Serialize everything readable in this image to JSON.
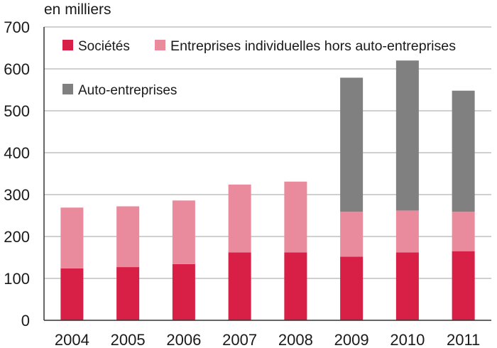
{
  "chart_data": {
    "type": "bar",
    "stacked": true,
    "unit_label": "en milliers",
    "categories": [
      "2004",
      "2005",
      "2006",
      "2007",
      "2008",
      "2009",
      "2010",
      "2011"
    ],
    "series": [
      {
        "name": "Sociétés",
        "color": "#d81f45",
        "values": [
          124,
          127,
          134,
          162,
          162,
          152,
          162,
          165
        ]
      },
      {
        "name": "Entreprises individuelles hors auto-entreprises",
        "color": "#ea8b9d",
        "values": [
          145,
          145,
          152,
          162,
          169,
          107,
          100,
          94
        ]
      },
      {
        "name": "Auto-entreprises",
        "color": "#808080",
        "values": [
          0,
          0,
          0,
          0,
          0,
          320,
          358,
          289
        ]
      }
    ],
    "ylim": [
      0,
      700
    ],
    "yticks": [
      "0",
      "100",
      "200",
      "300",
      "400",
      "500",
      "600",
      "700"
    ],
    "grid": true,
    "legend_position": "top-left"
  }
}
